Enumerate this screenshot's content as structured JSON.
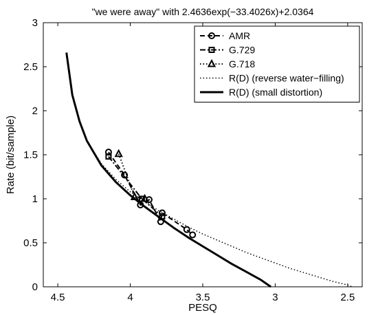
{
  "chart_data": {
    "type": "line",
    "title": "\"we were away\" with 2.4636exp(−33.4026x)+2.0364",
    "xlabel": "PESQ",
    "ylabel": "Rate (bit/sample)",
    "x_reversed": true,
    "xlim": [
      2.4,
      4.6
    ],
    "ylim": [
      0,
      3
    ],
    "xticks": [
      4.5,
      4,
      3.5,
      3,
      2.5
    ],
    "xtick_labels": [
      "4.5",
      "4",
      "3.5",
      "3",
      "2.5"
    ],
    "yticks": [
      0,
      0.5,
      1,
      1.5,
      2,
      2.5,
      3
    ],
    "ytick_labels": [
      "0",
      "0.5",
      "1",
      "1.5",
      "2",
      "2.5",
      "3"
    ],
    "grid": false,
    "legend_position": "top-right",
    "series": [
      {
        "name": "AMR",
        "style": "dashed",
        "marker": "circle",
        "color": "#000000",
        "points": [
          [
            4.15,
            1.53
          ],
          [
            4.04,
            1.27
          ],
          [
            3.93,
            0.93
          ],
          [
            3.87,
            0.99
          ],
          [
            3.79,
            0.74
          ],
          [
            3.78,
            0.84
          ],
          [
            3.61,
            0.65
          ],
          [
            3.57,
            0.59
          ]
        ]
      },
      {
        "name": "G.729",
        "style": "dashdot",
        "marker": "square",
        "color": "#000000",
        "points": [
          [
            4.15,
            1.48
          ],
          [
            3.92,
            1.0
          ],
          [
            3.78,
            0.8
          ]
        ]
      },
      {
        "name": "G.718",
        "style": "dotted",
        "marker": "triangle",
        "color": "#000000",
        "points": [
          [
            4.08,
            1.51
          ],
          [
            3.97,
            1.02
          ],
          [
            3.9,
            1.0
          ]
        ]
      },
      {
        "name": "R(D) (reverse water−filling)",
        "style": "dotted-line",
        "marker": "none",
        "color": "#000000",
        "points": [
          [
            4.44,
            2.66
          ],
          [
            4.4,
            2.18
          ],
          [
            4.35,
            1.88
          ],
          [
            4.3,
            1.66
          ],
          [
            4.2,
            1.4
          ],
          [
            4.1,
            1.22
          ],
          [
            4.0,
            1.08
          ],
          [
            3.9,
            0.97
          ],
          [
            3.8,
            0.86
          ],
          [
            3.7,
            0.77
          ],
          [
            3.6,
            0.68
          ],
          [
            3.5,
            0.6
          ],
          [
            3.4,
            0.53
          ],
          [
            3.3,
            0.46
          ],
          [
            3.2,
            0.39
          ],
          [
            3.1,
            0.33
          ],
          [
            3.0,
            0.27
          ],
          [
            2.9,
            0.21
          ],
          [
            2.8,
            0.16
          ],
          [
            2.7,
            0.11
          ],
          [
            2.6,
            0.06
          ],
          [
            2.5,
            0.02
          ],
          [
            2.47,
            0.0
          ]
        ]
      },
      {
        "name": "R(D) (small distortion)",
        "style": "solid-thick",
        "marker": "none",
        "color": "#000000",
        "points": [
          [
            4.44,
            2.66
          ],
          [
            4.4,
            2.18
          ],
          [
            4.35,
            1.88
          ],
          [
            4.3,
            1.66
          ],
          [
            4.2,
            1.38
          ],
          [
            4.1,
            1.19
          ],
          [
            4.0,
            1.04
          ],
          [
            3.9,
            0.91
          ],
          [
            3.8,
            0.79
          ],
          [
            3.7,
            0.67
          ],
          [
            3.6,
            0.56
          ],
          [
            3.5,
            0.46
          ],
          [
            3.4,
            0.36
          ],
          [
            3.3,
            0.26
          ],
          [
            3.2,
            0.17
          ],
          [
            3.1,
            0.08
          ],
          [
            3.03,
            0.0
          ]
        ]
      }
    ]
  }
}
